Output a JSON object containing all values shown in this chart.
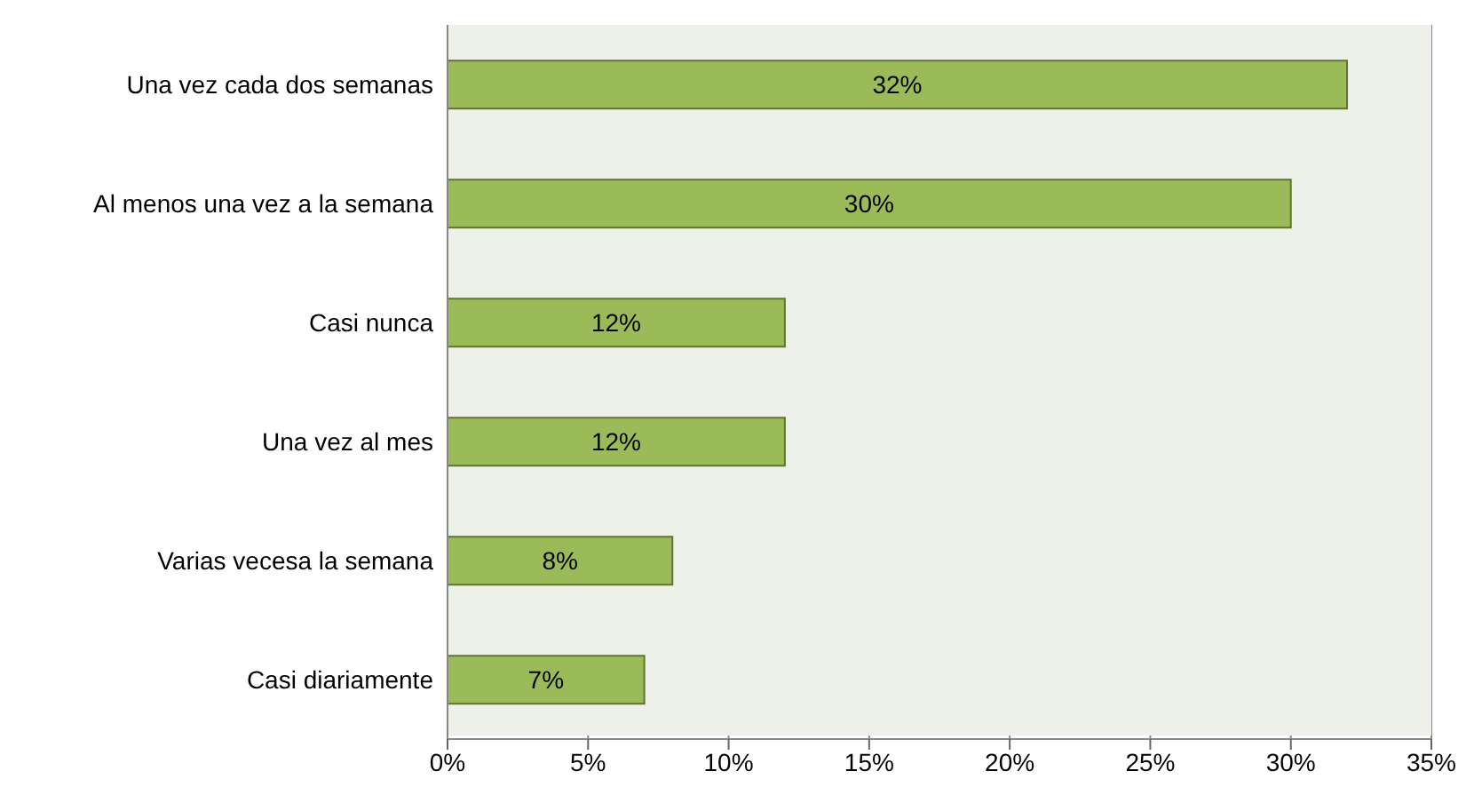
{
  "chart_data": {
    "type": "bar",
    "orientation": "horizontal",
    "categories": [
      "Una vez cada dos semanas",
      "Al menos una vez a la semana",
      "Casi nunca",
      "Una vez al mes",
      "Varias vecesa la semana",
      "Casi diariamente"
    ],
    "values": [
      32,
      30,
      12,
      12,
      8,
      7
    ],
    "value_labels": [
      "32%",
      "30%",
      "12%",
      "12%",
      "8%",
      "7%"
    ],
    "color": "#9bbb59",
    "xlim": [
      0,
      35
    ],
    "xticks": [
      {
        "value": 0,
        "label": "0%"
      },
      {
        "value": 5,
        "label": "5%"
      },
      {
        "value": 10,
        "label": "10%"
      },
      {
        "value": 15,
        "label": "15%"
      },
      {
        "value": 20,
        "label": "20%"
      },
      {
        "value": 25,
        "label": "25%"
      },
      {
        "value": 30,
        "label": "30%"
      },
      {
        "value": 35,
        "label": "35%"
      }
    ],
    "grid": "x"
  }
}
